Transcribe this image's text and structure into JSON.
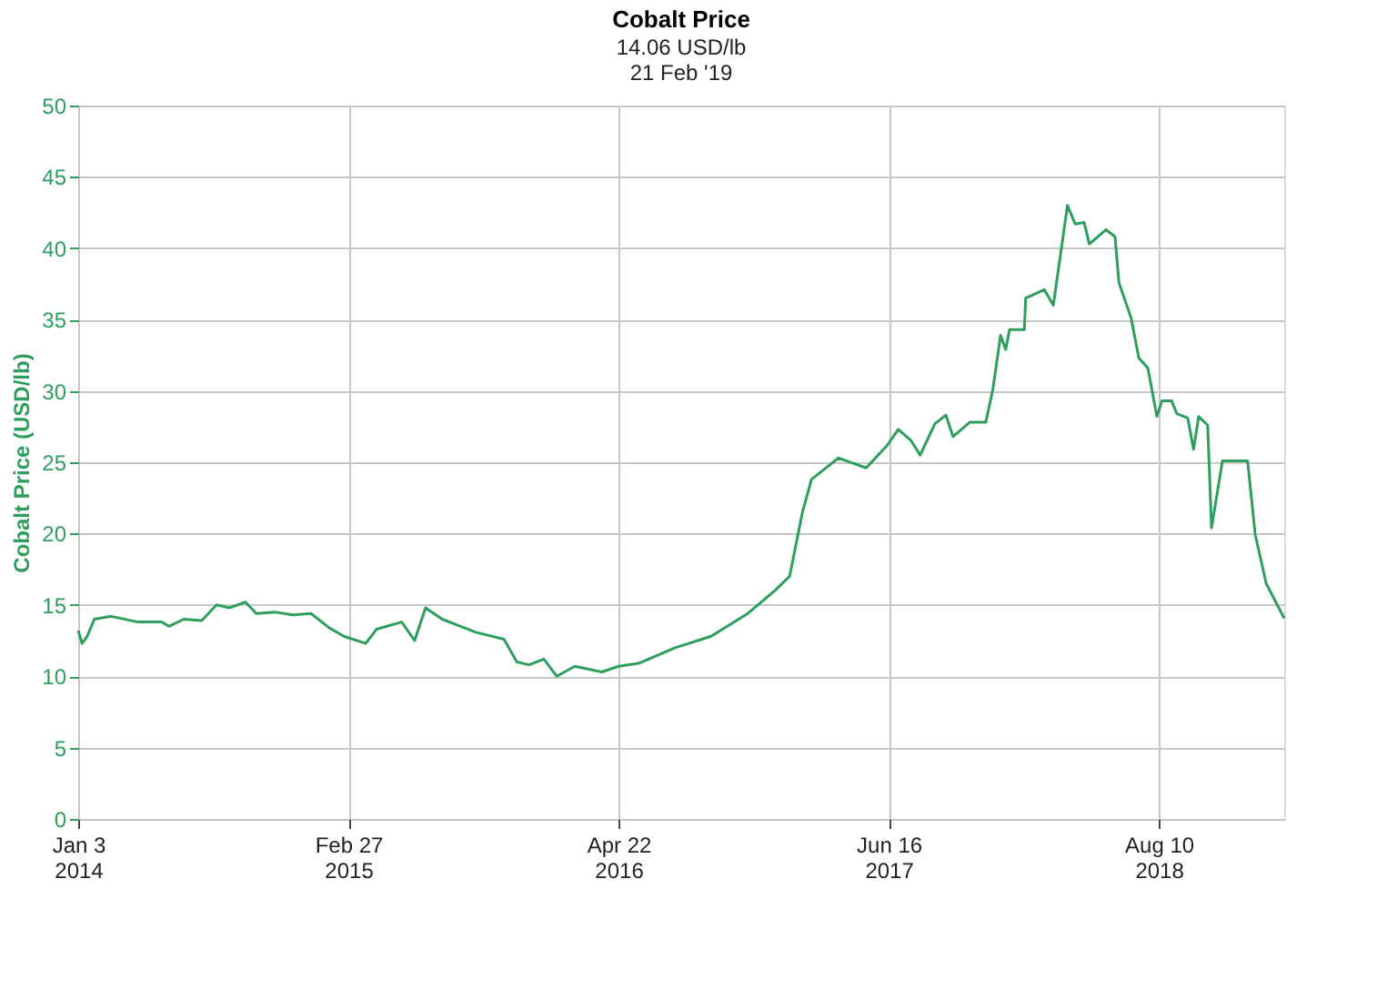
{
  "chart_data": {
    "type": "line",
    "title": "Cobalt Price",
    "subtitle": [
      "14.06 USD/lb",
      "21 Feb '19"
    ],
    "ylabel": "Cobalt Price (USD/lb)",
    "x": [
      "2014-01-03",
      "2014-01-09",
      "2014-01-17",
      "2014-01-28",
      "2014-02-23",
      "2014-04-06",
      "2014-05-13",
      "2014-05-24",
      "2014-06-16",
      "2014-07-14",
      "2014-08-06",
      "2014-08-26",
      "2014-09-20",
      "2014-10-07",
      "2014-11-04",
      "2014-12-03",
      "2014-12-31",
      "2015-01-28",
      "2015-02-20",
      "2015-03-26",
      "2015-04-12",
      "2015-05-21",
      "2015-06-10",
      "2015-06-27",
      "2015-07-23",
      "2015-09-12",
      "2015-10-27",
      "2015-11-16",
      "2015-12-05",
      "2015-12-28",
      "2016-01-17",
      "2016-02-14",
      "2016-03-27",
      "2016-04-22",
      "2016-05-23",
      "2016-07-19",
      "2016-09-13",
      "2016-11-09",
      "2016-12-21",
      "2017-01-13",
      "2017-02-02",
      "2017-02-16",
      "2017-03-30",
      "2017-05-12",
      "2017-06-14",
      "2017-07-01",
      "2017-07-21",
      "2017-08-04",
      "2017-08-27",
      "2017-09-13",
      "2017-09-24",
      "2017-10-20",
      "2017-11-14",
      "2017-11-25",
      "2017-12-07",
      "2017-12-15",
      "2017-12-21",
      "2018-01-13",
      "2018-01-15",
      "2018-02-13",
      "2018-02-27",
      "2018-03-21",
      "2018-04-02",
      "2018-04-16",
      "2018-04-24",
      "2018-05-20",
      "2018-06-03",
      "2018-06-09",
      "2018-06-28",
      "2018-07-10",
      "2018-07-24",
      "2018-08-07",
      "2018-08-15",
      "2018-08-30",
      "2018-09-07",
      "2018-09-24",
      "2018-10-03",
      "2018-10-11",
      "2018-10-25",
      "2018-10-31",
      "2018-11-17",
      "2018-12-26",
      "2019-01-07",
      "2019-01-24",
      "2019-02-21"
    ],
    "series": [
      {
        "color": "#2e9e5e",
        "values": [
          13.2,
          12.3,
          12.8,
          14.0,
          14.2,
          13.8,
          13.8,
          13.5,
          14.0,
          13.9,
          15.0,
          14.8,
          15.2,
          14.4,
          14.5,
          14.3,
          14.4,
          13.4,
          12.8,
          12.3,
          13.3,
          13.8,
          12.5,
          14.8,
          14.0,
          13.1,
          12.6,
          11.0,
          10.8,
          11.2,
          10.0,
          10.7,
          10.3,
          10.7,
          10.9,
          12.0,
          12.8,
          14.4,
          16.0,
          17.0,
          21.5,
          23.8,
          25.3,
          24.6,
          26.2,
          27.3,
          26.5,
          25.5,
          27.7,
          28.3,
          26.8,
          27.8,
          27.8,
          30.1,
          33.9,
          32.9,
          34.3,
          34.3,
          36.5,
          37.1,
          36.0,
          43.0,
          41.7,
          41.8,
          40.3,
          41.3,
          40.8,
          37.6,
          35.1,
          32.3,
          31.6,
          28.2,
          29.3,
          29.3,
          28.4,
          28.1,
          25.9,
          28.2,
          27.6,
          20.4,
          25.1,
          25.1,
          19.9,
          16.5,
          14.06
        ]
      }
    ],
    "xlim": [
      "2014-01-03",
      "2019-02-21"
    ],
    "xticks": [
      {
        "value": "2014-01-03",
        "label": "Jan 3\n2014"
      },
      {
        "value": "2015-02-27",
        "label": "Feb 27\n2015"
      },
      {
        "value": "2016-04-22",
        "label": "Apr 22\n2016"
      },
      {
        "value": "2017-06-16",
        "label": "Jun 16\n2017"
      },
      {
        "value": "2018-08-10",
        "label": "Aug 10\n2018"
      }
    ],
    "ylim": [
      0,
      50
    ],
    "yticks": [
      0,
      5,
      10,
      15,
      20,
      25,
      30,
      35,
      40,
      45,
      50
    ],
    "grid": true,
    "marker": "none",
    "line_style": "solid"
  }
}
